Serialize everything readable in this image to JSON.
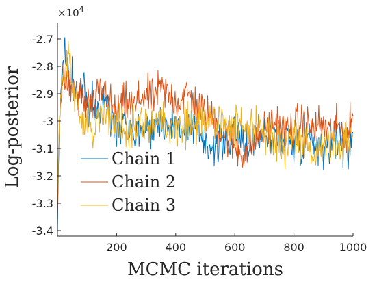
{
  "chart_data": {
    "type": "line",
    "xlabel": "MCMC iterations",
    "ylabel": "Log-posterior",
    "y_exponent_label": "×10",
    "y_exponent_power": "4",
    "xlim": [
      0,
      1000
    ],
    "ylim": [
      -3.42,
      -2.64
    ],
    "xticks": [
      200,
      400,
      600,
      800,
      1000
    ],
    "xtick_labels": [
      "200",
      "400",
      "600",
      "800",
      "1000"
    ],
    "yticks": [
      -2.7,
      -2.8,
      -2.9,
      -3.0,
      -3.1,
      -3.2,
      -3.3,
      -3.4
    ],
    "ytick_labels": [
      "-2.7",
      "-2.8",
      "-2.9",
      "-3",
      "-3.1",
      "-3.2",
      "-3.3",
      "-3.4"
    ],
    "grid": false,
    "legend_position": "lower-left",
    "series": [
      {
        "name": "Chain 1",
        "color": "#0072BD",
        "x": [
          0,
          5,
          10,
          15,
          20,
          25,
          30,
          35,
          40,
          45,
          50,
          60,
          70,
          80,
          90,
          100,
          120,
          140,
          160,
          180,
          200,
          230,
          260,
          290,
          320,
          350,
          380,
          410,
          440,
          470,
          500,
          530,
          560,
          590,
          620,
          650,
          680,
          710,
          740,
          770,
          800,
          830,
          860,
          890,
          920,
          950,
          980,
          1000
        ],
        "y": [
          -3.38,
          -3.1,
          -2.92,
          -2.83,
          -2.77,
          -2.72,
          -2.78,
          -2.8,
          -2.85,
          -2.88,
          -2.84,
          -2.89,
          -2.92,
          -2.88,
          -2.9,
          -2.95,
          -2.93,
          -2.97,
          -2.91,
          -2.99,
          -3.02,
          -2.98,
          -3.05,
          -3.02,
          -3.03,
          -3.0,
          -3.02,
          -3.01,
          -3.05,
          -3.03,
          -3.07,
          -3.1,
          -3.08,
          -3.05,
          -3.07,
          -3.09,
          -3.04,
          -3.06,
          -3.07,
          -3.05,
          -3.09,
          -3.08,
          -3.05,
          -3.1,
          -3.08,
          -3.06,
          -3.12,
          -3.04
        ]
      },
      {
        "name": "Chain 2",
        "color": "#D95319",
        "x": [
          0,
          5,
          10,
          15,
          20,
          25,
          30,
          35,
          40,
          45,
          50,
          60,
          70,
          80,
          90,
          100,
          120,
          140,
          160,
          180,
          200,
          230,
          260,
          290,
          320,
          350,
          380,
          410,
          440,
          470,
          500,
          530,
          560,
          590,
          620,
          650,
          680,
          710,
          740,
          770,
          800,
          830,
          860,
          890,
          920,
          950,
          980,
          1000
        ],
        "y": [
          -3.35,
          -3.05,
          -2.95,
          -2.88,
          -2.85,
          -2.82,
          -2.86,
          -2.88,
          -2.84,
          -2.9,
          -2.87,
          -2.88,
          -2.92,
          -2.9,
          -2.95,
          -2.92,
          -2.96,
          -2.9,
          -2.88,
          -2.94,
          -2.97,
          -2.93,
          -2.95,
          -2.9,
          -2.92,
          -2.88,
          -2.91,
          -2.93,
          -2.9,
          -2.94,
          -2.97,
          -3.0,
          -3.05,
          -3.08,
          -3.12,
          -3.1,
          -3.05,
          -3.02,
          -3.0,
          -3.04,
          -3.02,
          -3.0,
          -3.03,
          -3.01,
          -3.04,
          -3.02,
          -3.05,
          -2.98
        ]
      },
      {
        "name": "Chain 3",
        "color": "#EDB120",
        "x": [
          0,
          5,
          10,
          15,
          20,
          25,
          30,
          35,
          40,
          45,
          50,
          60,
          70,
          80,
          90,
          100,
          120,
          140,
          160,
          180,
          200,
          230,
          260,
          290,
          320,
          350,
          380,
          410,
          440,
          470,
          500,
          530,
          560,
          590,
          620,
          650,
          680,
          710,
          740,
          770,
          800,
          830,
          860,
          890,
          920,
          950,
          980,
          1000
        ],
        "y": [
          -3.28,
          -3.05,
          -2.92,
          -2.86,
          -2.82,
          -2.85,
          -2.8,
          -2.78,
          -2.76,
          -2.84,
          -2.88,
          -2.92,
          -2.95,
          -2.99,
          -3.02,
          -3.0,
          -3.05,
          -2.98,
          -2.95,
          -3.0,
          -3.02,
          -3.05,
          -3.01,
          -3.0,
          -3.03,
          -2.98,
          -3.02,
          -3.04,
          -3.0,
          -3.02,
          -3.01,
          -3.0,
          -2.98,
          -3.02,
          -3.0,
          -3.04,
          -3.02,
          -3.05,
          -3.07,
          -3.1,
          -3.06,
          -3.08,
          -3.12,
          -3.09,
          -3.06,
          -3.1,
          -3.07,
          -3.05
        ]
      }
    ]
  }
}
